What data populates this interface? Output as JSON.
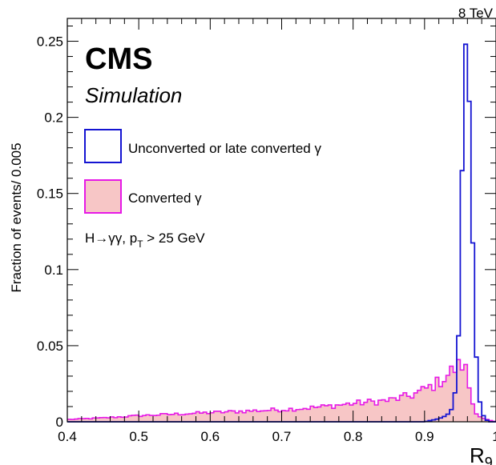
{
  "chart_data": {
    "type": "histogram",
    "energy_label": "8 TeV",
    "experiment": "CMS",
    "subtitle": "Simulation",
    "ylabel": "Fraction of events/ 0.005",
    "xlabel": "R",
    "xlabel_sub": "9",
    "xlim": [
      0.4,
      1.0
    ],
    "ylim": [
      0,
      0.265
    ],
    "bin_width": 0.005,
    "xticks": [
      "0.4",
      "0.5",
      "0.6",
      "0.7",
      "0.8",
      "0.9",
      "1"
    ],
    "yticks": [
      "0",
      "0.05",
      "0.1",
      "0.15",
      "0.2",
      "0.25"
    ],
    "selection_text": "H→γγ, p",
    "selection_sub": "T",
    "selection_rest": " > 25 GeV",
    "series": [
      {
        "name": "Unconverted or late converted γ",
        "style": "line",
        "color": "#1414d2",
        "points": [
          [
            0.4,
            0.0
          ],
          [
            0.9,
            0.0
          ],
          [
            0.91,
            0.001
          ],
          [
            0.92,
            0.002
          ],
          [
            0.93,
            0.004
          ],
          [
            0.935,
            0.006
          ],
          [
            0.94,
            0.01
          ],
          [
            0.945,
            0.028
          ],
          [
            0.95,
            0.085
          ],
          [
            0.955,
            0.245
          ],
          [
            0.96,
            0.251
          ],
          [
            0.965,
            0.17
          ],
          [
            0.97,
            0.065
          ],
          [
            0.975,
            0.02
          ],
          [
            0.98,
            0.006
          ],
          [
            0.985,
            0.002
          ],
          [
            0.99,
            0.0
          ],
          [
            1.0,
            0.0
          ]
        ]
      },
      {
        "name": "Converted γ",
        "style": "filled",
        "color": "#e619e6",
        "fill": "#f7c6c6",
        "points": [
          [
            0.4,
            0.0015
          ],
          [
            0.45,
            0.0025
          ],
          [
            0.5,
            0.004
          ],
          [
            0.55,
            0.005
          ],
          [
            0.6,
            0.006
          ],
          [
            0.65,
            0.007
          ],
          [
            0.7,
            0.008
          ],
          [
            0.75,
            0.0095
          ],
          [
            0.8,
            0.012
          ],
          [
            0.85,
            0.014
          ],
          [
            0.88,
            0.017
          ],
          [
            0.9,
            0.021
          ],
          [
            0.92,
            0.026
          ],
          [
            0.93,
            0.03
          ],
          [
            0.94,
            0.034
          ],
          [
            0.95,
            0.037
          ],
          [
            0.955,
            0.038
          ],
          [
            0.96,
            0.03
          ],
          [
            0.965,
            0.016
          ],
          [
            0.97,
            0.008
          ],
          [
            0.975,
            0.0045
          ],
          [
            0.98,
            0.0025
          ],
          [
            0.99,
            0.001
          ],
          [
            1.0,
            0.0
          ]
        ]
      }
    ]
  }
}
